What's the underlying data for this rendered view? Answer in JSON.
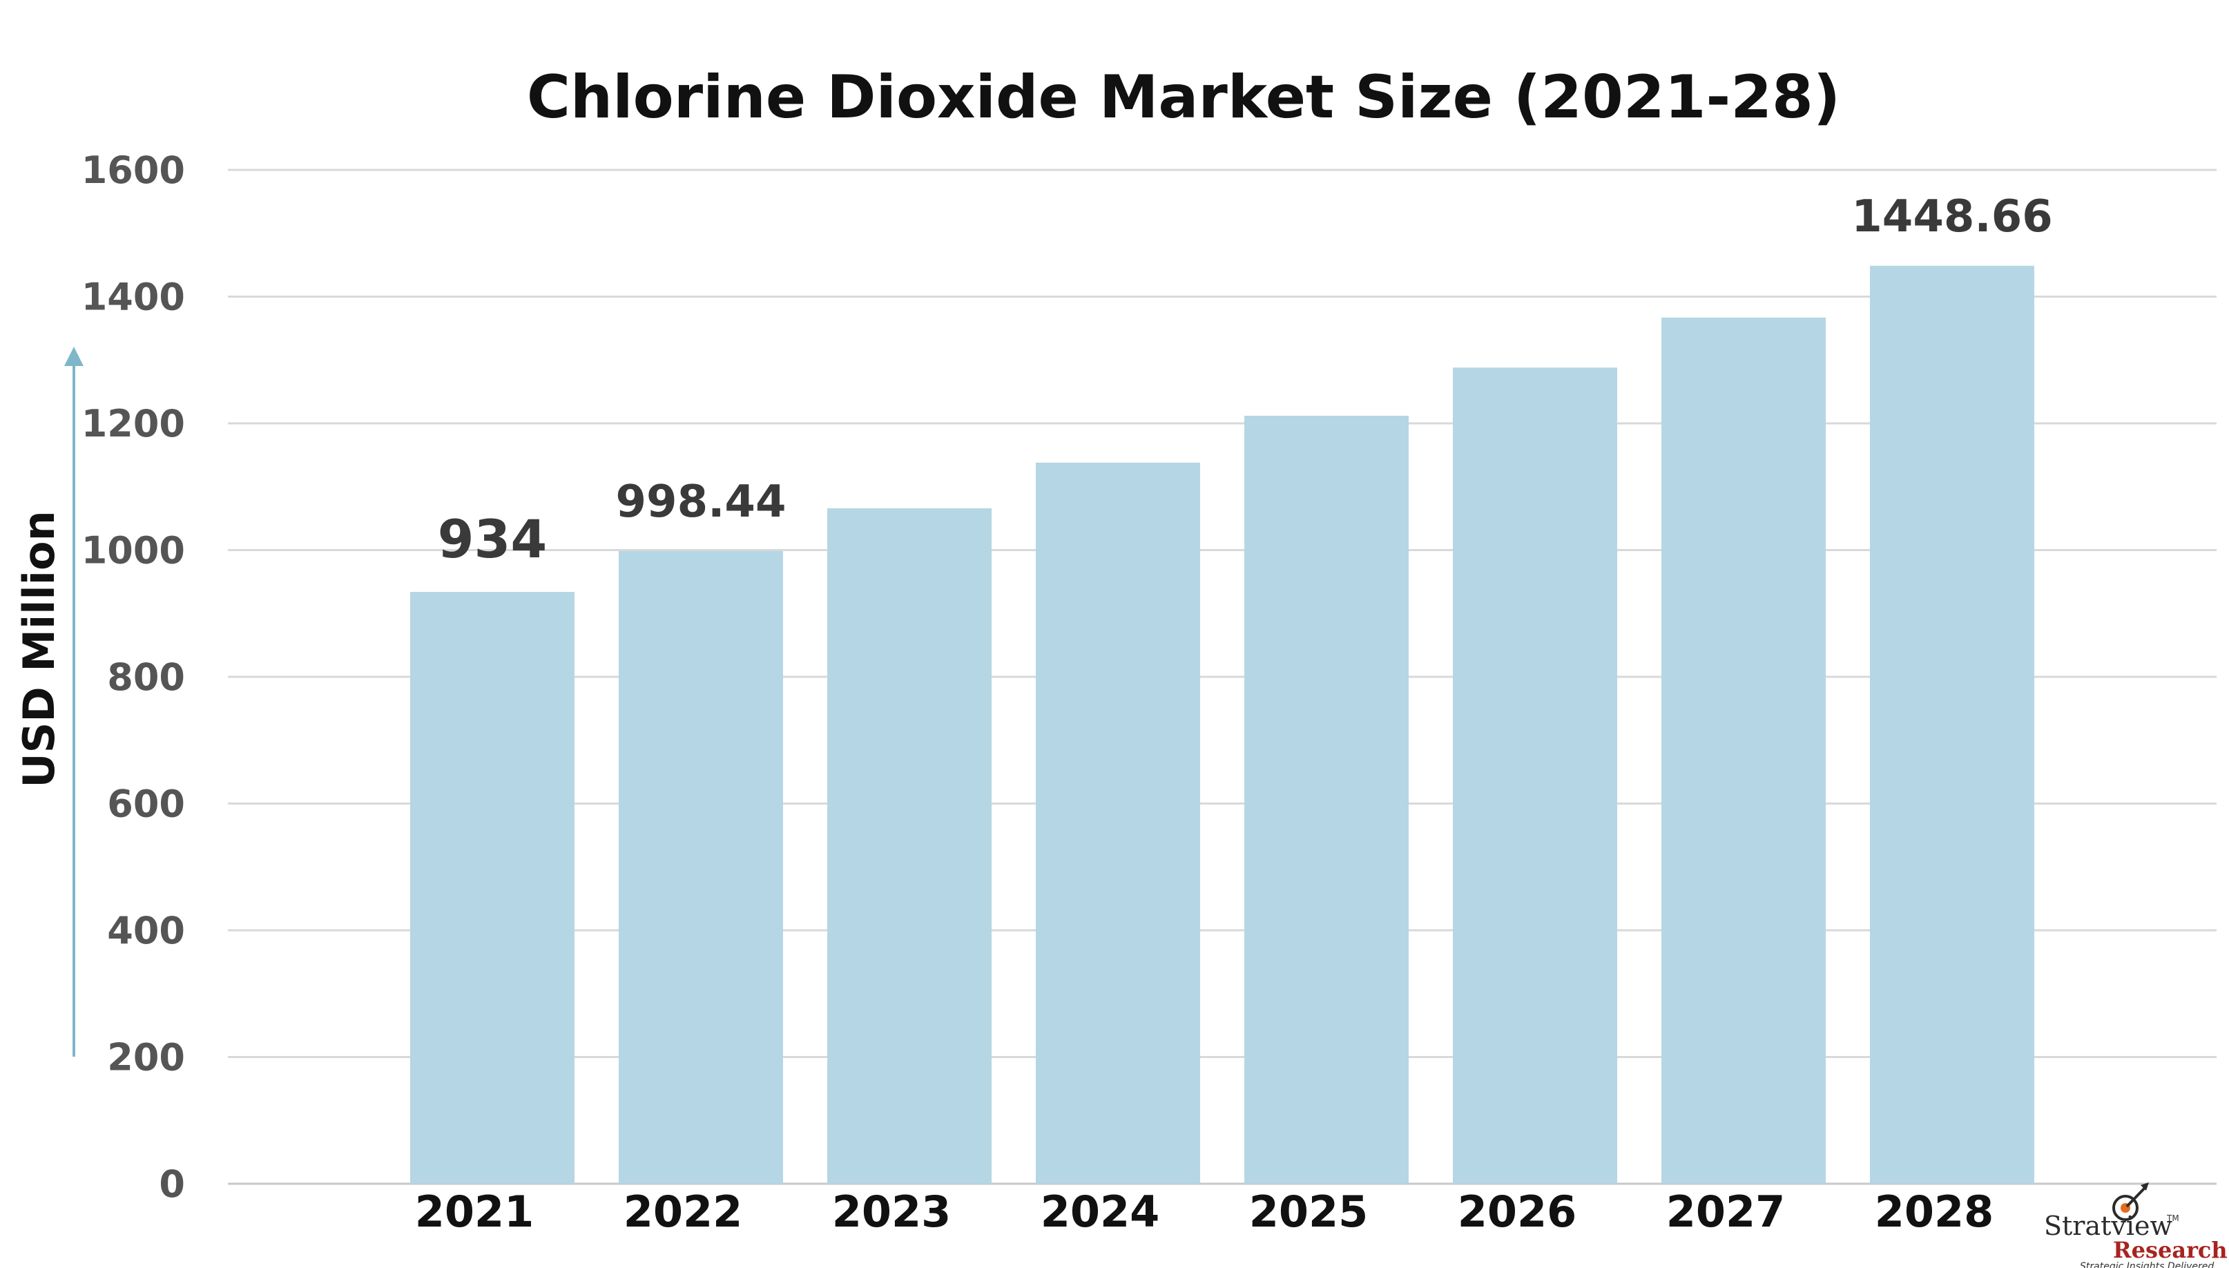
{
  "chart_data": {
    "type": "bar",
    "title": "Chlorine Dioxide Market Size (2021-28)",
    "ylabel": "USD Million",
    "xlabel": "",
    "categories": [
      "2021",
      "2022",
      "2023",
      "2024",
      "2025",
      "2026",
      "2027",
      "2028"
    ],
    "values": [
      934,
      998.44,
      1066,
      1138,
      1212,
      1288,
      1367,
      1448.66
    ],
    "data_labels": [
      "934",
      "998.44",
      "",
      "",
      "",
      "",
      "",
      "1448.66"
    ],
    "ylim": [
      0,
      1600
    ],
    "yticks": [
      0,
      200,
      400,
      600,
      800,
      1000,
      1200,
      1400,
      1600
    ],
    "grid": true,
    "bar_color": "#b5d6e4",
    "grid_color": "#d9d9d9",
    "arrow_color": "#7fb6c9"
  },
  "logo": {
    "name": "Stratview",
    "sub": "Research",
    "tagline": "Strategic Insights Delivered",
    "tm": "TM"
  }
}
